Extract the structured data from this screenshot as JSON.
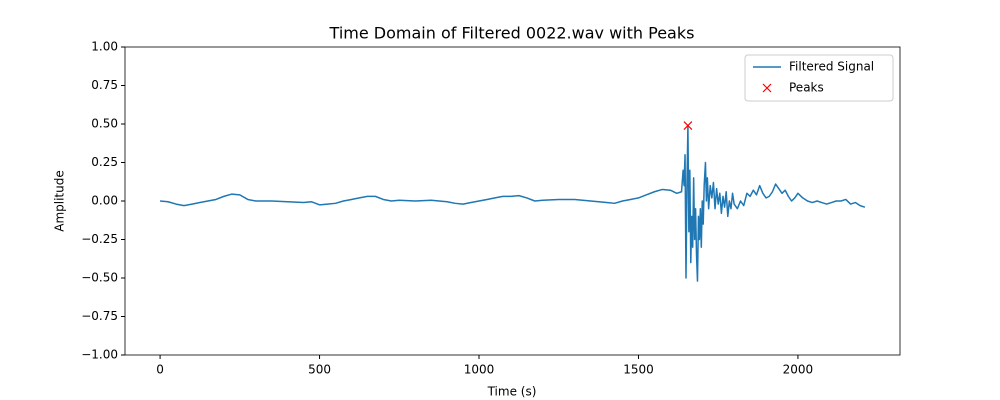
{
  "chart_data": {
    "type": "line",
    "title": "Time Domain of Filtered 0022.wav with Peaks",
    "xlabel": "Time (s)",
    "ylabel": "Amplitude",
    "xlim": [
      -110,
      2320
    ],
    "ylim": [
      -1,
      1
    ],
    "xticks": [
      0,
      500,
      1000,
      1500,
      2000
    ],
    "yticks": [
      {
        "value": -1,
        "label": "−1.00"
      },
      {
        "value": -0.75,
        "label": "−0.75"
      },
      {
        "value": -0.5,
        "label": "−0.50"
      },
      {
        "value": -0.25,
        "label": "−0.25"
      },
      {
        "value": 0,
        "label": "0.00"
      },
      {
        "value": 0.25,
        "label": "0.25"
      },
      {
        "value": 0.5,
        "label": "0.50"
      },
      {
        "value": 0.75,
        "label": "0.75"
      },
      {
        "value": 1,
        "label": "1.00"
      }
    ],
    "grid": false,
    "legend": "upper right",
    "series": [
      {
        "name": "Filtered Signal",
        "color": "#1f77b4",
        "linestyle": "solid",
        "marker": "none",
        "x": [
          0,
          25,
          50,
          75,
          100,
          125,
          150,
          175,
          200,
          225,
          250,
          275,
          300,
          350,
          400,
          450,
          475,
          500,
          525,
          550,
          575,
          600,
          625,
          650,
          675,
          700,
          725,
          750,
          800,
          850,
          900,
          925,
          950,
          975,
          1000,
          1025,
          1050,
          1075,
          1100,
          1125,
          1150,
          1175,
          1200,
          1250,
          1300,
          1350,
          1400,
          1425,
          1450,
          1475,
          1500,
          1525,
          1550,
          1575,
          1600,
          1620,
          1635,
          1640,
          1643,
          1646,
          1649,
          1652,
          1655,
          1658,
          1661,
          1664,
          1667,
          1670,
          1673,
          1676,
          1679,
          1682,
          1685,
          1688,
          1691,
          1694,
          1697,
          1700,
          1703,
          1706,
          1710,
          1713,
          1716,
          1720,
          1725,
          1730,
          1735,
          1740,
          1745,
          1750,
          1755,
          1760,
          1765,
          1770,
          1775,
          1780,
          1785,
          1790,
          1795,
          1800,
          1810,
          1820,
          1830,
          1840,
          1850,
          1860,
          1870,
          1880,
          1890,
          1900,
          1910,
          1920,
          1930,
          1940,
          1950,
          1960,
          1970,
          1980,
          1990,
          2000,
          2015,
          2030,
          2045,
          2060,
          2075,
          2090,
          2105,
          2120,
          2135,
          2150,
          2165,
          2180,
          2195,
          2210
        ],
        "values": [
          0,
          -0.005,
          -0.02,
          -0.03,
          -0.02,
          -0.01,
          0,
          0.01,
          0.03,
          0.045,
          0.04,
          0.01,
          0,
          0,
          -0.005,
          -0.01,
          -0.005,
          -0.025,
          -0.02,
          -0.015,
          0,
          0.01,
          0.02,
          0.03,
          0.03,
          0.01,
          0,
          0.005,
          0,
          0.005,
          -0.005,
          -0.015,
          -0.02,
          -0.01,
          0,
          0.01,
          0.02,
          0.03,
          0.03,
          0.035,
          0.02,
          0,
          0.005,
          0.01,
          0.01,
          0,
          -0.01,
          -0.015,
          0,
          0.01,
          0.02,
          0.04,
          0.06,
          0.075,
          0.07,
          0.05,
          0.06,
          0.2,
          0.1,
          0.3,
          -0.5,
          0.1,
          0.49,
          -0.2,
          0.2,
          -0.4,
          -0.1,
          -0.3,
          0.15,
          -0.25,
          -0.05,
          -0.35,
          -0.52,
          -0.1,
          -0.25,
          -0.05,
          -0.3,
          0,
          -0.15,
          0.1,
          0.25,
          0,
          0.15,
          -0.05,
          0.1,
          0.02,
          0.12,
          -0.05,
          0.08,
          -0.02,
          0.05,
          -0.08,
          0.03,
          -0.04,
          0.06,
          -0.1,
          0,
          -0.05,
          0.05,
          -0.02,
          -0.05,
          0,
          -0.03,
          0.05,
          0.03,
          0.07,
          0.04,
          0.1,
          0.05,
          0.02,
          0.03,
          0.06,
          0.11,
          0.08,
          0.05,
          0.07,
          0.03,
          0,
          0.02,
          0.05,
          0.02,
          0,
          -0.01,
          0,
          -0.01,
          -0.02,
          -0.01,
          0,
          0,
          0.01,
          -0.02,
          -0.01,
          -0.03,
          -0.04
        ]
      },
      {
        "name": "Peaks",
        "color": "#ff0000",
        "linestyle": "none",
        "marker": "x",
        "x": [
          1655
        ],
        "values": [
          0.49
        ]
      }
    ]
  }
}
